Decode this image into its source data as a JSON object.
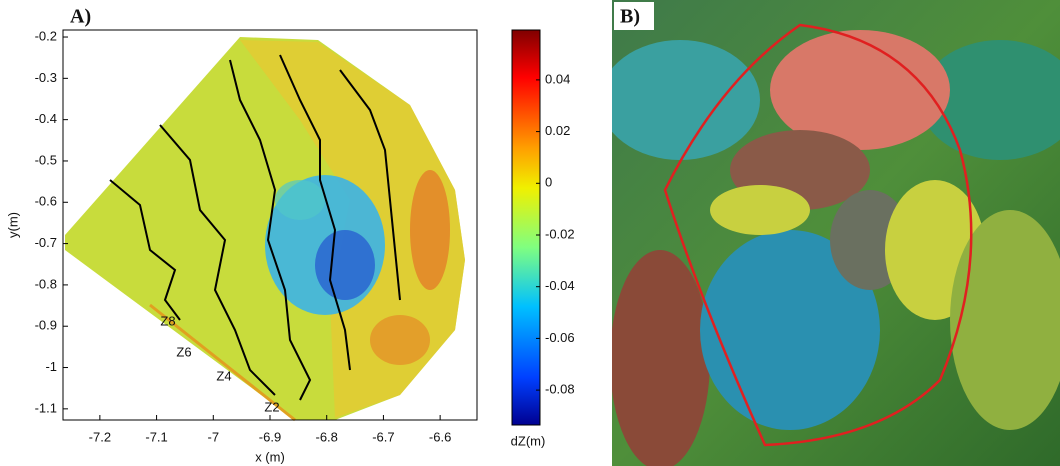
{
  "panel_labels": [
    "A)",
    "B)"
  ],
  "chart_data": {
    "type": "heatmap",
    "xlabel": "x (m)",
    "ylabel": "y(m)",
    "xlim": [
      -7.265,
      -6.535
    ],
    "ylim": [
      -1.127,
      -0.183
    ],
    "xticks": [
      -7.2,
      -7.1,
      -7,
      -6.9,
      -6.8,
      -6.7,
      -6.6
    ],
    "yticks": [
      -0.2,
      -0.3,
      -0.4,
      -0.5,
      -0.6,
      -0.7,
      -0.8,
      -0.9,
      -1,
      -1.1
    ],
    "colorbar": {
      "label": "dZ(m)",
      "lim": [
        -0.0935,
        0.0593
      ],
      "ticks": [
        0.04,
        0.02,
        0,
        -0.02,
        -0.04,
        -0.06,
        -0.08
      ],
      "colormap": "jet"
    },
    "annotations": [
      "Z8",
      "Z6",
      "Z4",
      "Z2"
    ]
  }
}
